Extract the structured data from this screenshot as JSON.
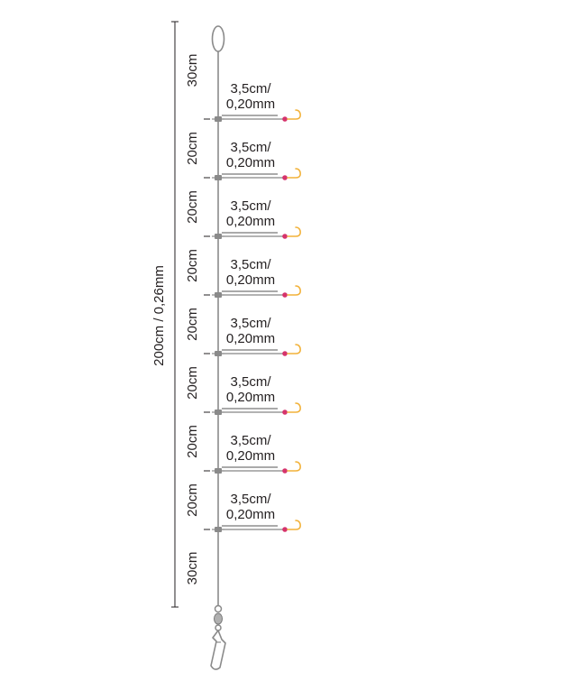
{
  "overall_label": "200cm / 0,26mm",
  "segment_labels": [
    "30cm",
    "20cm",
    "20cm",
    "20cm",
    "20cm",
    "20cm",
    "20cm",
    "20cm",
    "30cm"
  ],
  "snood_label": {
    "line1": "3,5cm/",
    "line2": "0,20mm"
  },
  "hook_count": 8,
  "colors": {
    "line": "#8a8a8a",
    "text": "#231f20",
    "hook": "#f2b23a",
    "bead": "#d6336c",
    "swivel": "#9a9a9a"
  },
  "parts": {
    "top": "loop-icon",
    "bottom": "swivel-snap-icon",
    "hooks": "hook-icon"
  }
}
